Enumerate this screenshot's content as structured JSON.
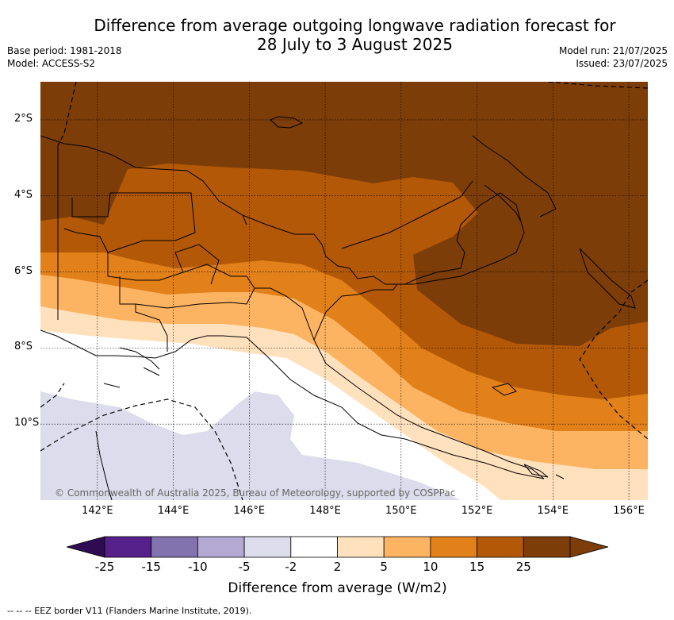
{
  "header": {
    "title_line1": "Difference from average outgoing longwave radiation forecast for",
    "title_line2": "28 July to 3 August 2025",
    "base_period": "Base period: 1981-2018",
    "model": "Model: ACCESS-S2",
    "model_run": "Model run: 21/07/2025",
    "issued": "Issued: 23/07/2025"
  },
  "map": {
    "lat_labels": [
      "2°S",
      "4°S",
      "6°S",
      "8°S",
      "10°S"
    ],
    "lat_values": [
      -2,
      -4,
      -6,
      -8,
      -10
    ],
    "lon_labels": [
      "142°E",
      "144°E",
      "146°E",
      "148°E",
      "150°E",
      "152°E",
      "154°E",
      "156°E"
    ],
    "lon_values": [
      142,
      144,
      146,
      148,
      150,
      152,
      154,
      156
    ],
    "extent": {
      "lon_min": 140.5,
      "lon_max": 156.5,
      "lat_min": -12,
      "lat_max": -1
    },
    "copyright": "© Commonwealth of Australia 2025, Bureau of Meteorology, supported by COSPPac"
  },
  "colorbar": {
    "ticks": [
      "-25",
      "-15",
      "-10",
      "-5",
      "-2",
      "2",
      "5",
      "10",
      "15",
      "25"
    ],
    "bin_colors": [
      "#56208a",
      "#8272ad",
      "#b3a9d3",
      "#dcdcec",
      "#ffffff",
      "#ffe2bd",
      "#fcb463",
      "#e28019",
      "#b25807",
      "#7d3d08"
    ],
    "under_color": "#2e0b52",
    "over_color": "#7d3d08",
    "title": "Difference from average (W/m2)"
  },
  "footer": {
    "eez_note": "-- -- -- EEZ border V11 (Flanders Marine Institute, 2019)."
  }
}
